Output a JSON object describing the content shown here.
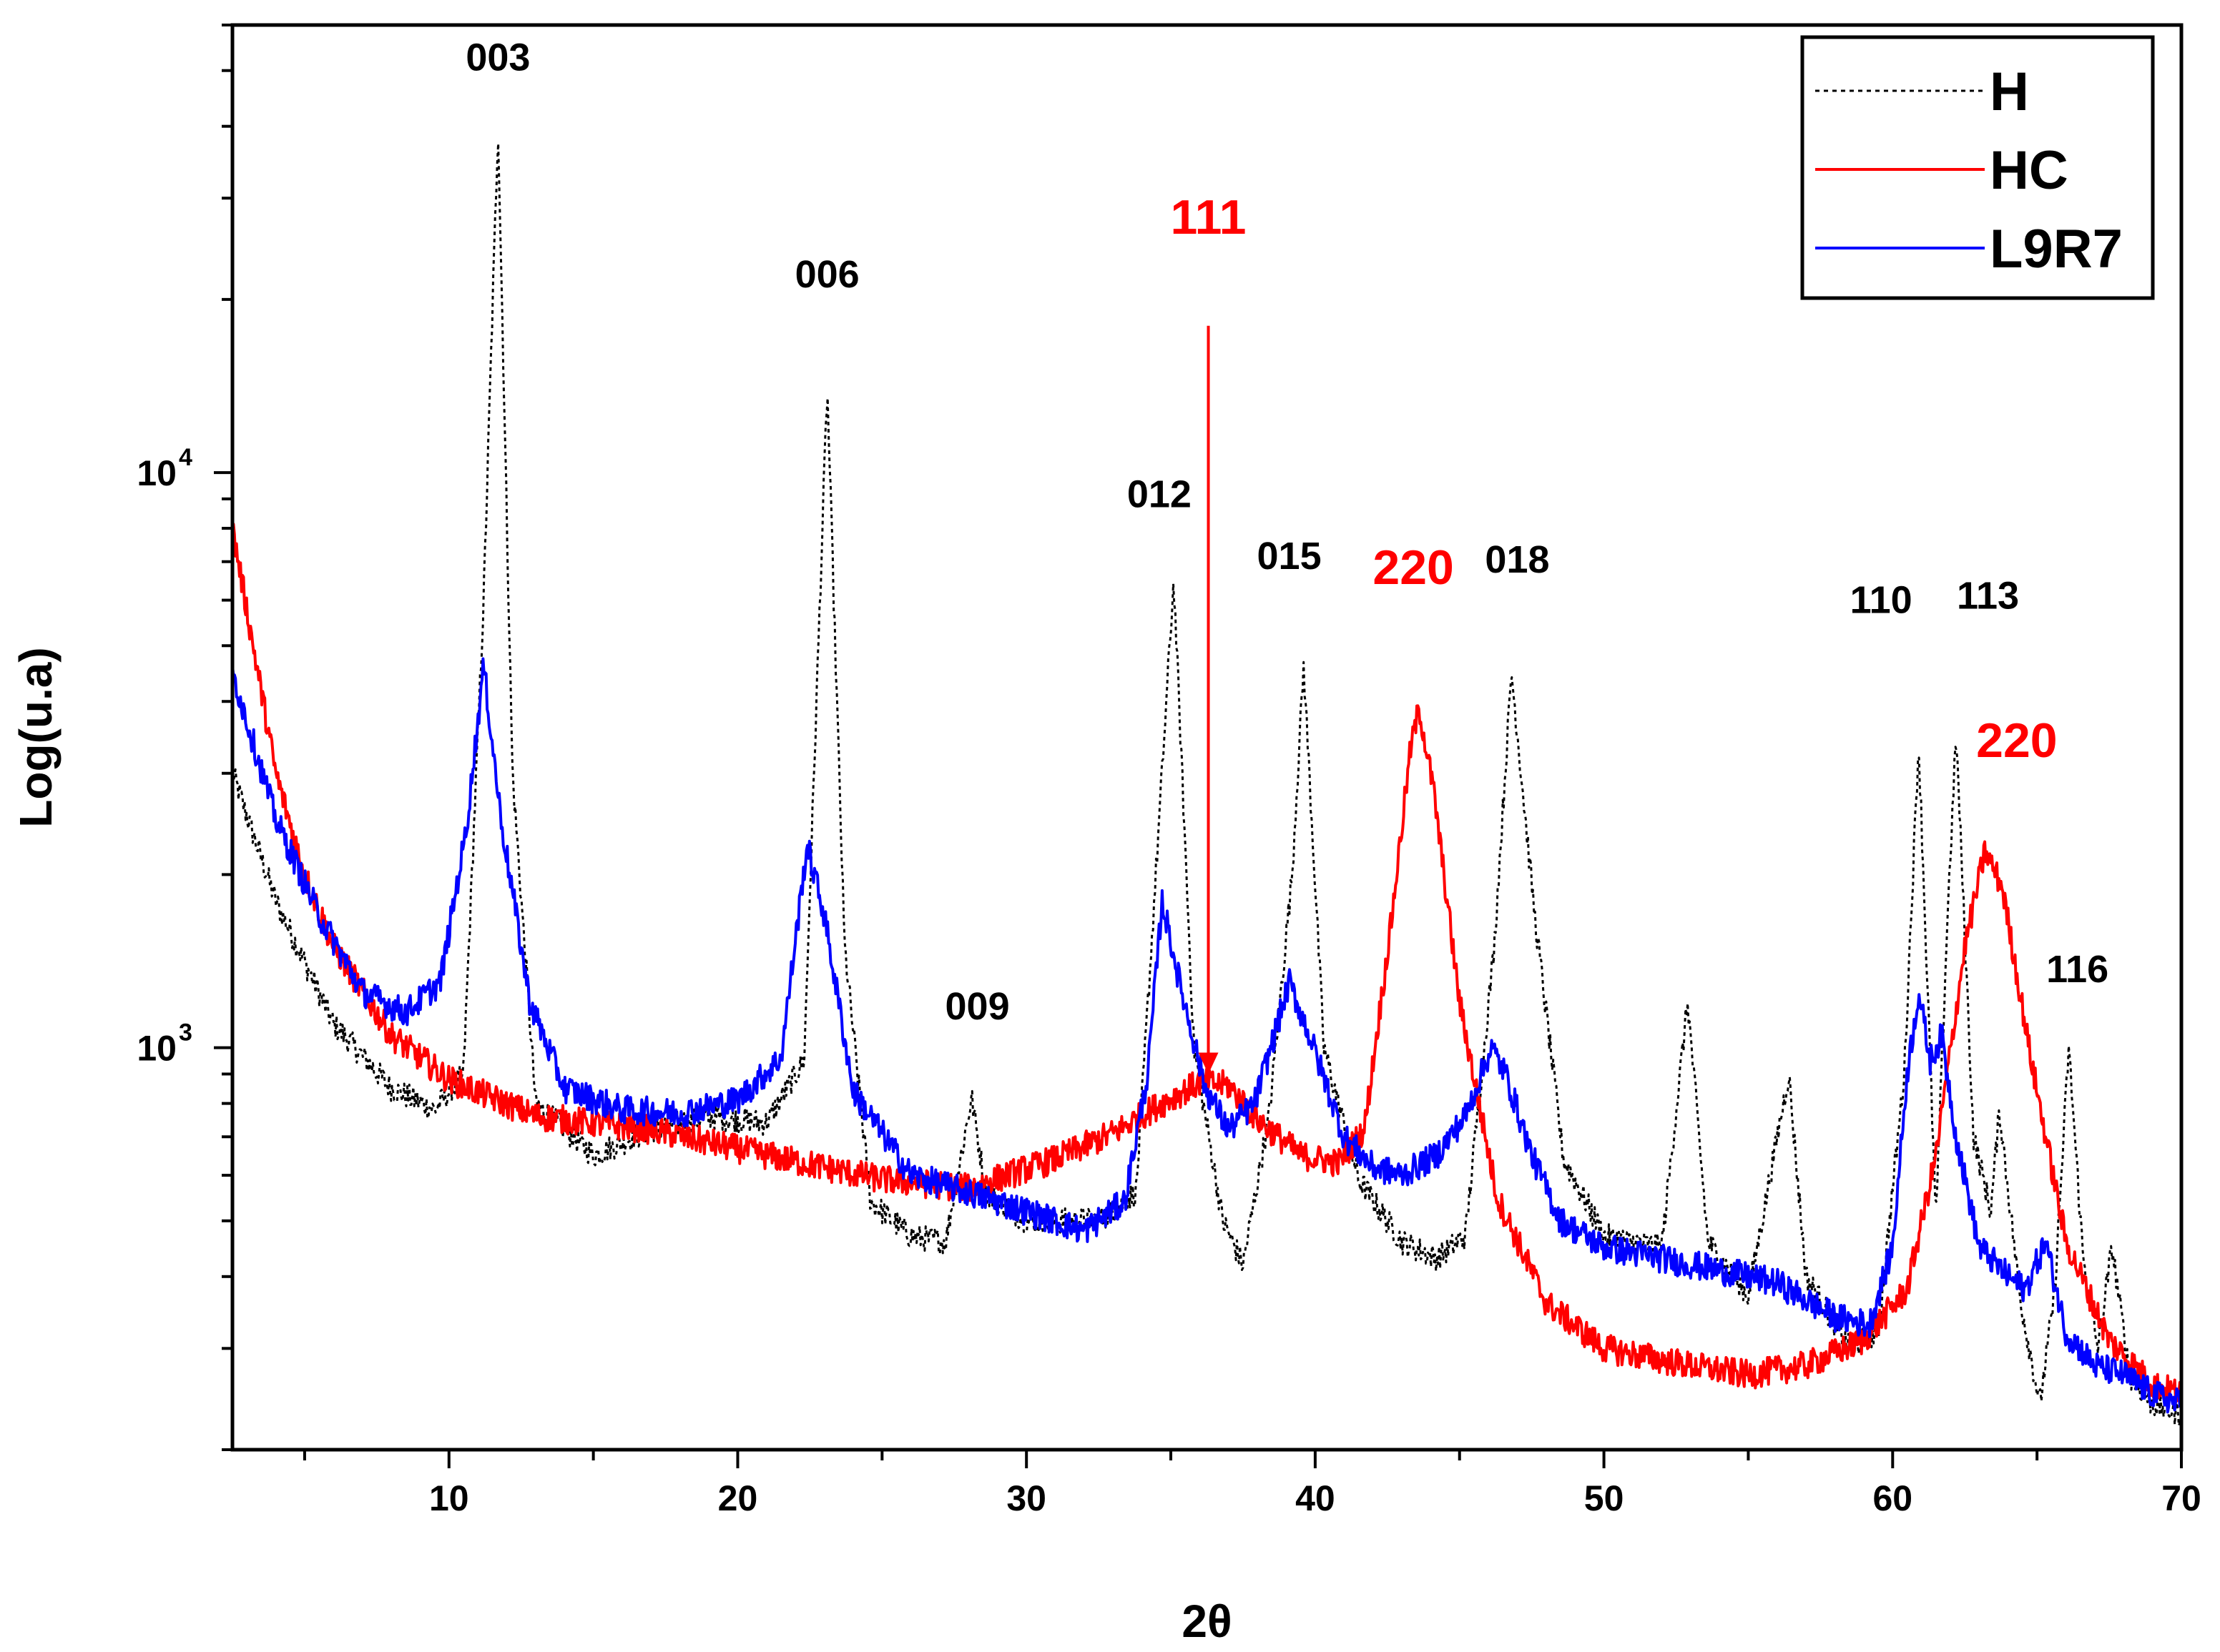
{
  "chart_data": {
    "type": "line",
    "title": "",
    "xlabel": "2θ",
    "ylabel": "Log(u.a)",
    "xlim": [
      2.5,
      70
    ],
    "ylim": [
      200,
      60000
    ],
    "yscale": "log",
    "grid": false,
    "legend_position": "top-right",
    "x_ticks": [
      {
        "value": 10,
        "label": "10"
      },
      {
        "value": 20,
        "label": "20"
      },
      {
        "value": 30,
        "label": "30"
      },
      {
        "value": 40,
        "label": "40"
      },
      {
        "value": 50,
        "label": "50"
      },
      {
        "value": 60,
        "label": "60"
      },
      {
        "value": 70,
        "label": "70"
      }
    ],
    "y_ticks": [
      {
        "value": 1000,
        "base": "10",
        "exp": "3"
      },
      {
        "value": 10000,
        "base": "10",
        "exp": "4"
      }
    ],
    "series": [
      {
        "name": "H",
        "color": "#000000",
        "dash": true,
        "points": [
          [
            2.5,
            3000
          ],
          [
            4,
            1800
          ],
          [
            6,
            1100
          ],
          [
            8,
            850
          ],
          [
            9.5,
            780
          ],
          [
            10.5,
            900
          ],
          [
            11.2,
            6000
          ],
          [
            11.7,
            40000
          ],
          [
            12.2,
            3000
          ],
          [
            13,
            800
          ],
          [
            15,
            650
          ],
          [
            17,
            720
          ],
          [
            19,
            760
          ],
          [
            21,
            740
          ],
          [
            22.3,
            950
          ],
          [
            23.1,
            14000
          ],
          [
            23.7,
            1500
          ],
          [
            24.6,
            540
          ],
          [
            26,
            470
          ],
          [
            27.2,
            460
          ],
          [
            28.1,
            820
          ],
          [
            28.6,
            560
          ],
          [
            30,
            500
          ],
          [
            32.5,
            500
          ],
          [
            33.8,
            560
          ],
          [
            34.6,
            2500
          ],
          [
            35.1,
            6500
          ],
          [
            35.8,
            1000
          ],
          [
            36.8,
            500
          ],
          [
            37.5,
            420
          ],
          [
            38.4,
            760
          ],
          [
            39.2,
            2000
          ],
          [
            39.6,
            4600
          ],
          [
            40.3,
            1000
          ],
          [
            41.5,
            590
          ],
          [
            43,
            460
          ],
          [
            44.2,
            430
          ],
          [
            45.2,
            470
          ],
          [
            46.2,
            1500
          ],
          [
            46.8,
            4500
          ],
          [
            47.6,
            1700
          ],
          [
            48.6,
            640
          ],
          [
            50,
            470
          ],
          [
            52,
            450
          ],
          [
            52.9,
            1200
          ],
          [
            53.6,
            460
          ],
          [
            55,
            370
          ],
          [
            56.4,
            900
          ],
          [
            57,
            400
          ],
          [
            58.5,
            300
          ],
          [
            59.5,
            320
          ],
          [
            60.4,
            900
          ],
          [
            60.9,
            3400
          ],
          [
            61.5,
            500
          ],
          [
            61.9,
            1700
          ],
          [
            62.2,
            3500
          ],
          [
            62.8,
            700
          ],
          [
            63.4,
            520
          ],
          [
            63.7,
            780
          ],
          [
            64.4,
            370
          ],
          [
            65.1,
            240
          ],
          [
            65.6,
            370
          ],
          [
            66.1,
            1000
          ],
          [
            66.6,
            430
          ],
          [
            67.1,
            300
          ],
          [
            67.6,
            450
          ],
          [
            68.2,
            270
          ],
          [
            69,
            240
          ],
          [
            70,
            230
          ]
        ]
      },
      {
        "name": "HC",
        "color": "#ff0000",
        "dash": false,
        "points": [
          [
            2.5,
            8000
          ],
          [
            4,
            3000
          ],
          [
            5,
            2000
          ],
          [
            6,
            1500
          ],
          [
            8,
            1050
          ],
          [
            10,
            880
          ],
          [
            13,
            760
          ],
          [
            17,
            720
          ],
          [
            21,
            650
          ],
          [
            25,
            590
          ],
          [
            28,
            570
          ],
          [
            31,
            640
          ],
          [
            33,
            710
          ],
          [
            34.5,
            790
          ],
          [
            36,
            870
          ],
          [
            37,
            860
          ],
          [
            38,
            750
          ],
          [
            39.5,
            650
          ],
          [
            40.8,
            630
          ],
          [
            41.7,
            720
          ],
          [
            42.6,
            1600
          ],
          [
            43.3,
            3300
          ],
          [
            43.6,
            3900
          ],
          [
            44.1,
            2800
          ],
          [
            45,
            1200
          ],
          [
            46.3,
            550
          ],
          [
            48,
            360
          ],
          [
            50,
            300
          ],
          [
            53,
            280
          ],
          [
            55,
            270
          ],
          [
            57,
            280
          ],
          [
            59,
            310
          ],
          [
            60.5,
            380
          ],
          [
            61.5,
            650
          ],
          [
            62.5,
            1500
          ],
          [
            63.2,
            2200
          ],
          [
            63.8,
            1900
          ],
          [
            64.8,
            950
          ],
          [
            66,
            460
          ],
          [
            67.5,
            310
          ],
          [
            69,
            260
          ],
          [
            70,
            250
          ]
        ]
      },
      {
        "name": "L9R7",
        "color": "#0000ff",
        "dash": false,
        "points": [
          [
            2.5,
            4500
          ],
          [
            4,
            2500
          ],
          [
            5.5,
            1700
          ],
          [
            7,
            1250
          ],
          [
            8.5,
            1150
          ],
          [
            9.7,
            1300
          ],
          [
            10.6,
            2400
          ],
          [
            11.2,
            4600
          ],
          [
            11.8,
            2500
          ],
          [
            12.8,
            1200
          ],
          [
            14,
            850
          ],
          [
            16,
            780
          ],
          [
            18,
            770
          ],
          [
            20,
            810
          ],
          [
            21.5,
            960
          ],
          [
            22.4,
            2250
          ],
          [
            23,
            1700
          ],
          [
            24,
            840
          ],
          [
            26,
            600
          ],
          [
            28,
            560
          ],
          [
            30,
            520
          ],
          [
            32,
            480
          ],
          [
            33.4,
            540
          ],
          [
            34.2,
            900
          ],
          [
            34.7,
            1800
          ],
          [
            35.3,
            1300
          ],
          [
            36.2,
            850
          ],
          [
            37,
            720
          ],
          [
            37.9,
            800
          ],
          [
            38.7,
            1100
          ],
          [
            39.1,
            1300
          ],
          [
            39.8,
            1050
          ],
          [
            41,
            700
          ],
          [
            42,
            620
          ],
          [
            43,
            600
          ],
          [
            44.2,
            650
          ],
          [
            45.2,
            760
          ],
          [
            46.1,
            1000
          ],
          [
            46.6,
            900
          ],
          [
            47.5,
            650
          ],
          [
            48.5,
            500
          ],
          [
            50,
            450
          ],
          [
            52,
            430
          ],
          [
            54,
            410
          ],
          [
            56,
            390
          ],
          [
            58,
            340
          ],
          [
            59.2,
            330
          ],
          [
            60,
            450
          ],
          [
            60.5,
            900
          ],
          [
            60.9,
            1250
          ],
          [
            61.3,
            950
          ],
          [
            61.7,
            1050
          ],
          [
            62.2,
            700
          ],
          [
            63,
            450
          ],
          [
            64,
            400
          ],
          [
            64.6,
            380
          ],
          [
            65.3,
            460
          ],
          [
            66,
            320
          ],
          [
            67,
            280
          ],
          [
            68,
            270
          ],
          [
            69,
            250
          ],
          [
            70,
            240
          ]
        ]
      }
    ],
    "annotations": [
      {
        "text": "003",
        "color": "#000000",
        "x": 11.7,
        "y": 50000,
        "size": "small"
      },
      {
        "text": "006",
        "color": "#000000",
        "x": 23.1,
        "y": 21000,
        "size": "small"
      },
      {
        "text": "009",
        "color": "#000000",
        "x": 28.3,
        "y": 1120,
        "size": "small"
      },
      {
        "text": "012",
        "color": "#000000",
        "x": 34.6,
        "y": 8700,
        "size": "small"
      },
      {
        "text": "015",
        "color": "#000000",
        "x": 39.1,
        "y": 6800,
        "size": "small"
      },
      {
        "text": "018",
        "color": "#000000",
        "x": 47.0,
        "y": 6700,
        "size": "small"
      },
      {
        "text": "110",
        "color": "#000000",
        "x": 59.6,
        "y": 5700,
        "size": "small"
      },
      {
        "text": "113",
        "color": "#000000",
        "x": 63.3,
        "y": 5800,
        "size": "small"
      },
      {
        "text": "116",
        "color": "#000000",
        "x": 66.4,
        "y": 1300,
        "size": "small"
      },
      {
        "text": "111",
        "color": "#ff0000",
        "x": 36.3,
        "y": 26000,
        "size": "large"
      },
      {
        "text": "220",
        "color": "#ff0000",
        "x": 43.4,
        "y": 6400,
        "size": "large"
      },
      {
        "text": "220",
        "color": "#ff0000",
        "x": 64.3,
        "y": 3200,
        "size": "large"
      }
    ],
    "arrow": {
      "color": "#ff0000",
      "x": 36.3,
      "y_from": 18000,
      "y_to": 900
    }
  }
}
